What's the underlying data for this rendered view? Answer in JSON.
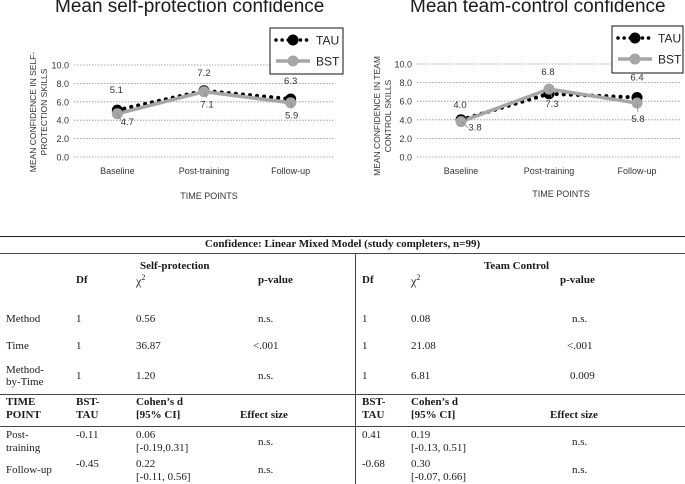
{
  "charts": {
    "left": {
      "title": "Mean self-protection confidence",
      "ylabel_line1": "MEAN CONFIDENCE IN SELF-",
      "ylabel_line2": "PROTECTION SKILLS"
    },
    "right": {
      "title": "Mean team-control confidence",
      "ylabel_line1": "MEAN CONFIDENCE IN TEAM",
      "ylabel_line2": "CONTROL SKILLS"
    }
  },
  "chart_data": [
    {
      "type": "line",
      "title": "Mean self-protection confidence",
      "xlabel": "TIME POINTS",
      "ylabel": "MEAN CONFIDENCE IN SELF-PROTECTION SKILLS",
      "categories": [
        "Baseline",
        "Post-training",
        "Follow-up"
      ],
      "yticks": [
        "0.0",
        "2.0",
        "4.0",
        "6.0",
        "8.0",
        "10.0"
      ],
      "ylim": [
        0,
        10
      ],
      "legend_position": "top-right",
      "series": [
        {
          "name": "TAU",
          "values": [
            5.1,
            7.2,
            6.3
          ],
          "labels": [
            "5.1",
            "7.2",
            "6.3"
          ],
          "color": "#000000",
          "style": "dotted"
        },
        {
          "name": "BST",
          "values": [
            4.7,
            7.1,
            5.9
          ],
          "labels": [
            "4.7",
            "7.1",
            "5.9"
          ],
          "color": "#a6a6a6",
          "style": "solid"
        }
      ]
    },
    {
      "type": "line",
      "title": "Mean team-control confidence",
      "xlabel": "TIME POINTS",
      "ylabel": "MEAN CONFIDENCE IN TEAM CONTROL SKILLS",
      "categories": [
        "Baseline",
        "Post-training",
        "Follow-up"
      ],
      "yticks": [
        "0.0",
        "2.0",
        "4.0",
        "6.0",
        "8.0",
        "10.0"
      ],
      "ylim": [
        0,
        10
      ],
      "legend_position": "top-right",
      "series": [
        {
          "name": "TAU",
          "values": [
            4.0,
            6.8,
            6.4
          ],
          "labels": [
            "4.0",
            "6.8",
            "6.4"
          ],
          "color": "#000000",
          "style": "dotted"
        },
        {
          "name": "BST",
          "values": [
            3.8,
            7.3,
            5.8
          ],
          "labels": [
            "3.8",
            "7.3",
            "5.8"
          ],
          "color": "#a6a6a6",
          "style": "solid"
        }
      ]
    }
  ],
  "table": {
    "title": "Confidence: Linear Mixed Model (study completers, n=99)",
    "sp_header": "Self-protection",
    "tc_header": "Team Control",
    "col_df": "Df",
    "col_chi": "χ",
    "col_chi_sup": "2",
    "col_p": "p-value",
    "rows": [
      {
        "label": "Method",
        "df1": "1",
        "chi1": "0.56",
        "p1": "n.s.",
        "df2": "1",
        "chi2": "0.08",
        "p2": "n.s."
      },
      {
        "label": "Time",
        "df1": "1",
        "chi1": "36.87",
        "p1": "<.001",
        "df2": "1",
        "chi2": "21.08",
        "p2": "<.001"
      },
      {
        "label_l1": "Method-",
        "label_l2": "by-Time",
        "df1": "1",
        "chi1": "1.20",
        "p1": "n.s.",
        "df2": "1",
        "chi2": "6.81",
        "p2": "0.009"
      }
    ],
    "effect_header": {
      "tp_l1": "TIME",
      "tp_l2": "POINT",
      "bst_l1": "BST-",
      "bst_l2": "TAU",
      "d_l1": "Cohen’s d",
      "d_l2": "[95% CI]",
      "es": "Effect size"
    },
    "effect_rows": [
      {
        "tp_l1": "Post-",
        "tp_l2": "training",
        "bst1": "-0.11",
        "d1_l1": "0.06",
        "d1_l2": "[-0.19,0.31]",
        "es1": "n.s.",
        "bst2": "0.41",
        "d2_l1": "0.19",
        "d2_l2": "[-0.13, 0.51]",
        "es2": "n.s."
      },
      {
        "tp": "Follow-up",
        "bst1": "-0.45",
        "d1_l1": "0.22",
        "d1_l2": "[-0.11, 0.56]",
        "es1": "n.s.",
        "bst2": "-0.68",
        "d2_l1": "0.30",
        "d2_l2": "[-0.07, 0.66]",
        "es2": "n.s."
      }
    ]
  }
}
